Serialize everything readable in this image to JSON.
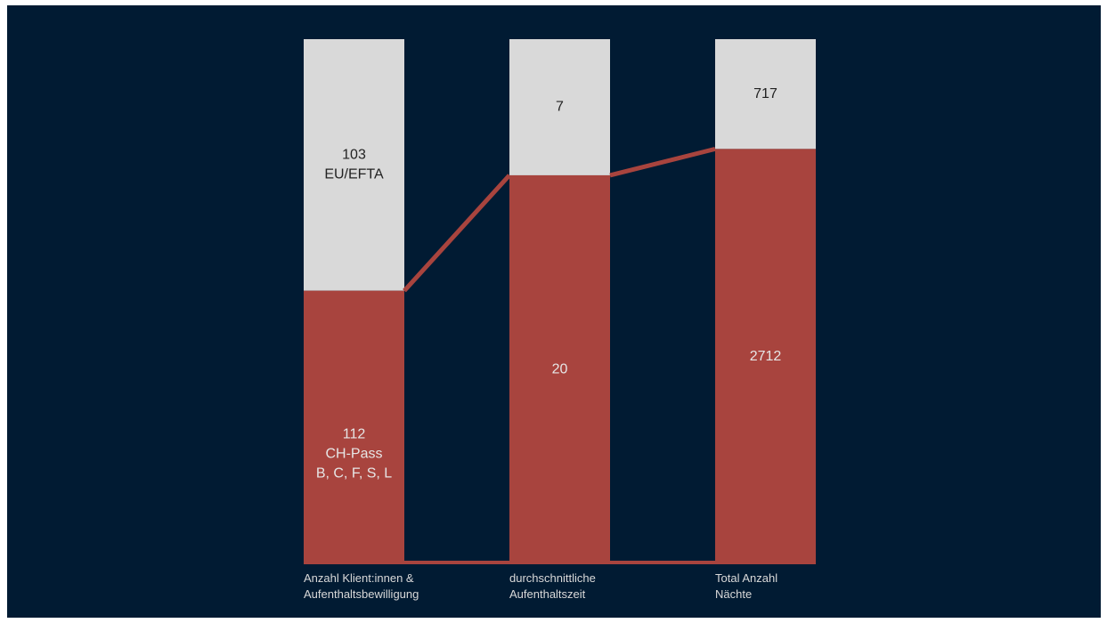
{
  "chart_data": {
    "type": "bar",
    "stacked": "percent",
    "categories": [
      [
        "Anzahl Klient:innen &",
        "Aufenthaltsbewilligung"
      ],
      [
        "durchschnittliche",
        "Aufenthaltszeit"
      ],
      [
        "Total Anzahl",
        "Nächte"
      ]
    ],
    "series": [
      {
        "values": [
          112,
          20,
          2712
        ],
        "labels": [
          [
            "112",
            "CH-Pass",
            "B, C, F, S, L"
          ],
          [
            "20"
          ],
          [
            "2712"
          ]
        ],
        "color": "#a8443e"
      },
      {
        "values": [
          103,
          7,
          717
        ],
        "labels": [
          [
            "103",
            "EU/EFTA"
          ],
          [
            "7"
          ],
          [
            "717"
          ]
        ],
        "color": "#d9d9d9"
      }
    ],
    "connector_color": "#a8443e",
    "background": "#011b33",
    "grid": false,
    "legend": "none"
  }
}
